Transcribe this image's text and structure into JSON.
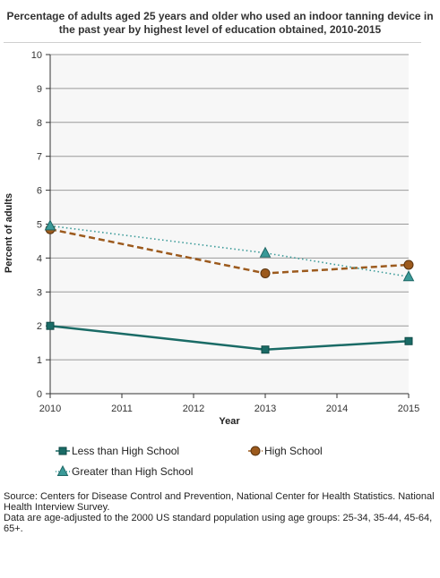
{
  "chart_data": {
    "type": "line",
    "title": "Percentage of adults aged 25 years and older who used an indoor tanning device in the past year by highest level of education obtained, 2010-2015",
    "xlabel": "Year",
    "ylabel": "Percent of adults",
    "x_ticks": [
      2010,
      2011,
      2012,
      2013,
      2014,
      2015
    ],
    "xlim": [
      2010,
      2015
    ],
    "y_ticks": [
      0,
      1,
      2,
      3,
      4,
      5,
      6,
      7,
      8,
      9,
      10
    ],
    "ylim": [
      0,
      10
    ],
    "grid": true,
    "legend_position": "bottom",
    "series": [
      {
        "name": "Less than High School",
        "x": [
          2010,
          2013,
          2015
        ],
        "values": [
          2.0,
          1.3,
          1.55
        ],
        "color": "#1a6b66",
        "marker": "square",
        "line": "solid"
      },
      {
        "name": "High School",
        "x": [
          2010,
          2013,
          2015
        ],
        "values": [
          4.85,
          3.55,
          3.8
        ],
        "color": "#9c5a1d",
        "marker": "circle",
        "line": "dashed"
      },
      {
        "name": "Greater than High School",
        "x": [
          2010,
          2013,
          2015
        ],
        "values": [
          4.95,
          4.15,
          3.45
        ],
        "color": "#3a9a98",
        "marker": "triangle",
        "line": "dotted"
      }
    ]
  },
  "footer": {
    "source": "Source: Centers for Disease Control and Prevention, National Center for Health Statistics. National Health Interview Survey.",
    "note": "Data are age-adjusted to the 2000 US standard population using age groups: 25-34, 35-44, 45-64, 65+."
  }
}
